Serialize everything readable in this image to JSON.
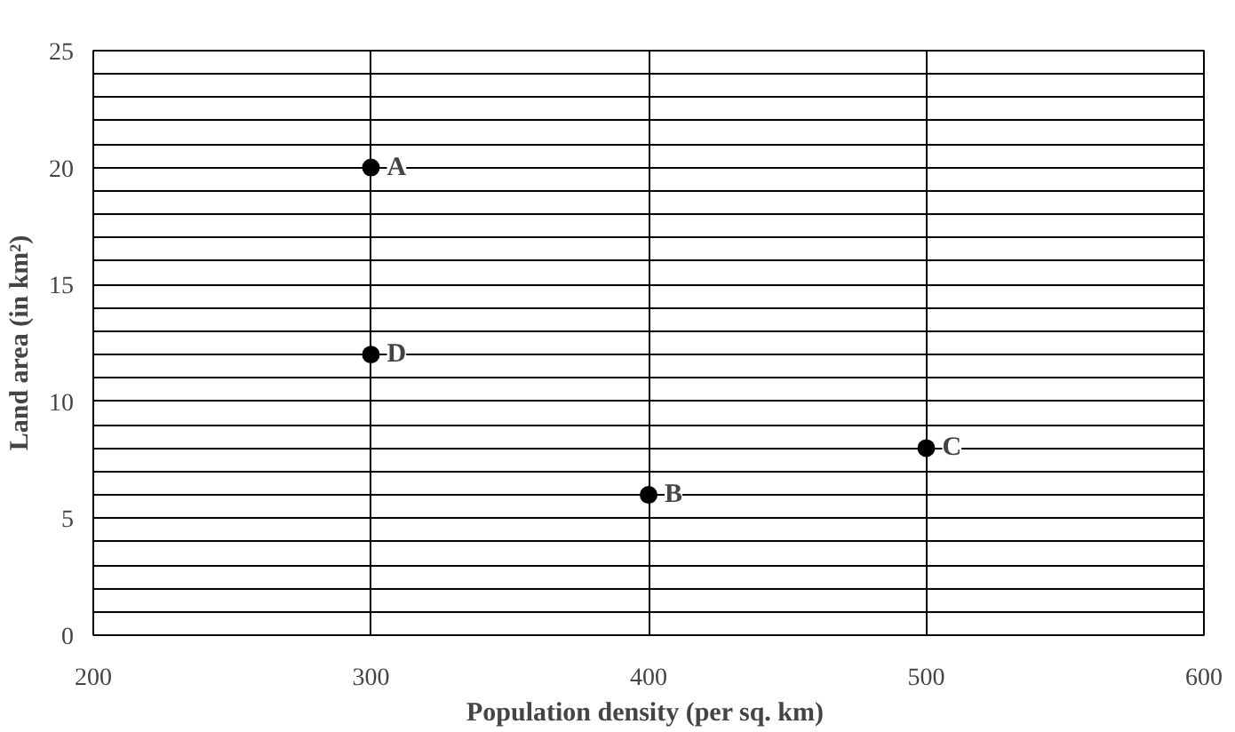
{
  "chart_data": {
    "type": "scatter",
    "xlabel": "Population density  (per sq. km)",
    "ylabel": "Land area (in km²)",
    "x": [
      300,
      300,
      400,
      500
    ],
    "series": [
      {
        "color": "#000000",
        "values": [
          20,
          12,
          6,
          8
        ]
      }
    ],
    "xlim": [
      200,
      600
    ],
    "xticks": [
      200,
      300,
      400,
      500,
      600
    ],
    "ylim": [
      0,
      25
    ],
    "yticks": [
      0,
      {
        "value": 1,
        "label": null
      },
      {
        "value": 2,
        "label": null
      },
      {
        "value": 3,
        "label": null
      },
      {
        "value": 4,
        "label": null
      },
      5,
      {
        "value": 6,
        "label": null
      },
      {
        "value": 7,
        "label": null
      },
      {
        "value": 8,
        "label": null
      },
      {
        "value": 9,
        "label": null
      },
      10,
      {
        "value": 11,
        "label": null
      },
      {
        "value": 12,
        "label": null
      },
      {
        "value": 13,
        "label": null
      },
      {
        "value": 14,
        "label": null
      },
      15,
      {
        "value": 16,
        "label": null
      },
      {
        "value": 17,
        "label": null
      },
      {
        "value": 18,
        "label": null
      },
      {
        "value": 19,
        "label": null
      },
      20,
      {
        "value": 21,
        "label": null
      },
      {
        "value": 22,
        "label": null
      },
      {
        "value": 23,
        "label": null
      },
      {
        "value": 24,
        "label": null
      },
      25
    ],
    "annotations": [
      {
        "text": "A",
        "x": 300,
        "y": 20
      },
      {
        "text": "D",
        "x": 300,
        "y": 12
      },
      {
        "text": "B",
        "x": 400,
        "y": 6
      },
      {
        "text": "C",
        "x": 500,
        "y": 8
      }
    ],
    "grid": true,
    "marker": "circle"
  }
}
